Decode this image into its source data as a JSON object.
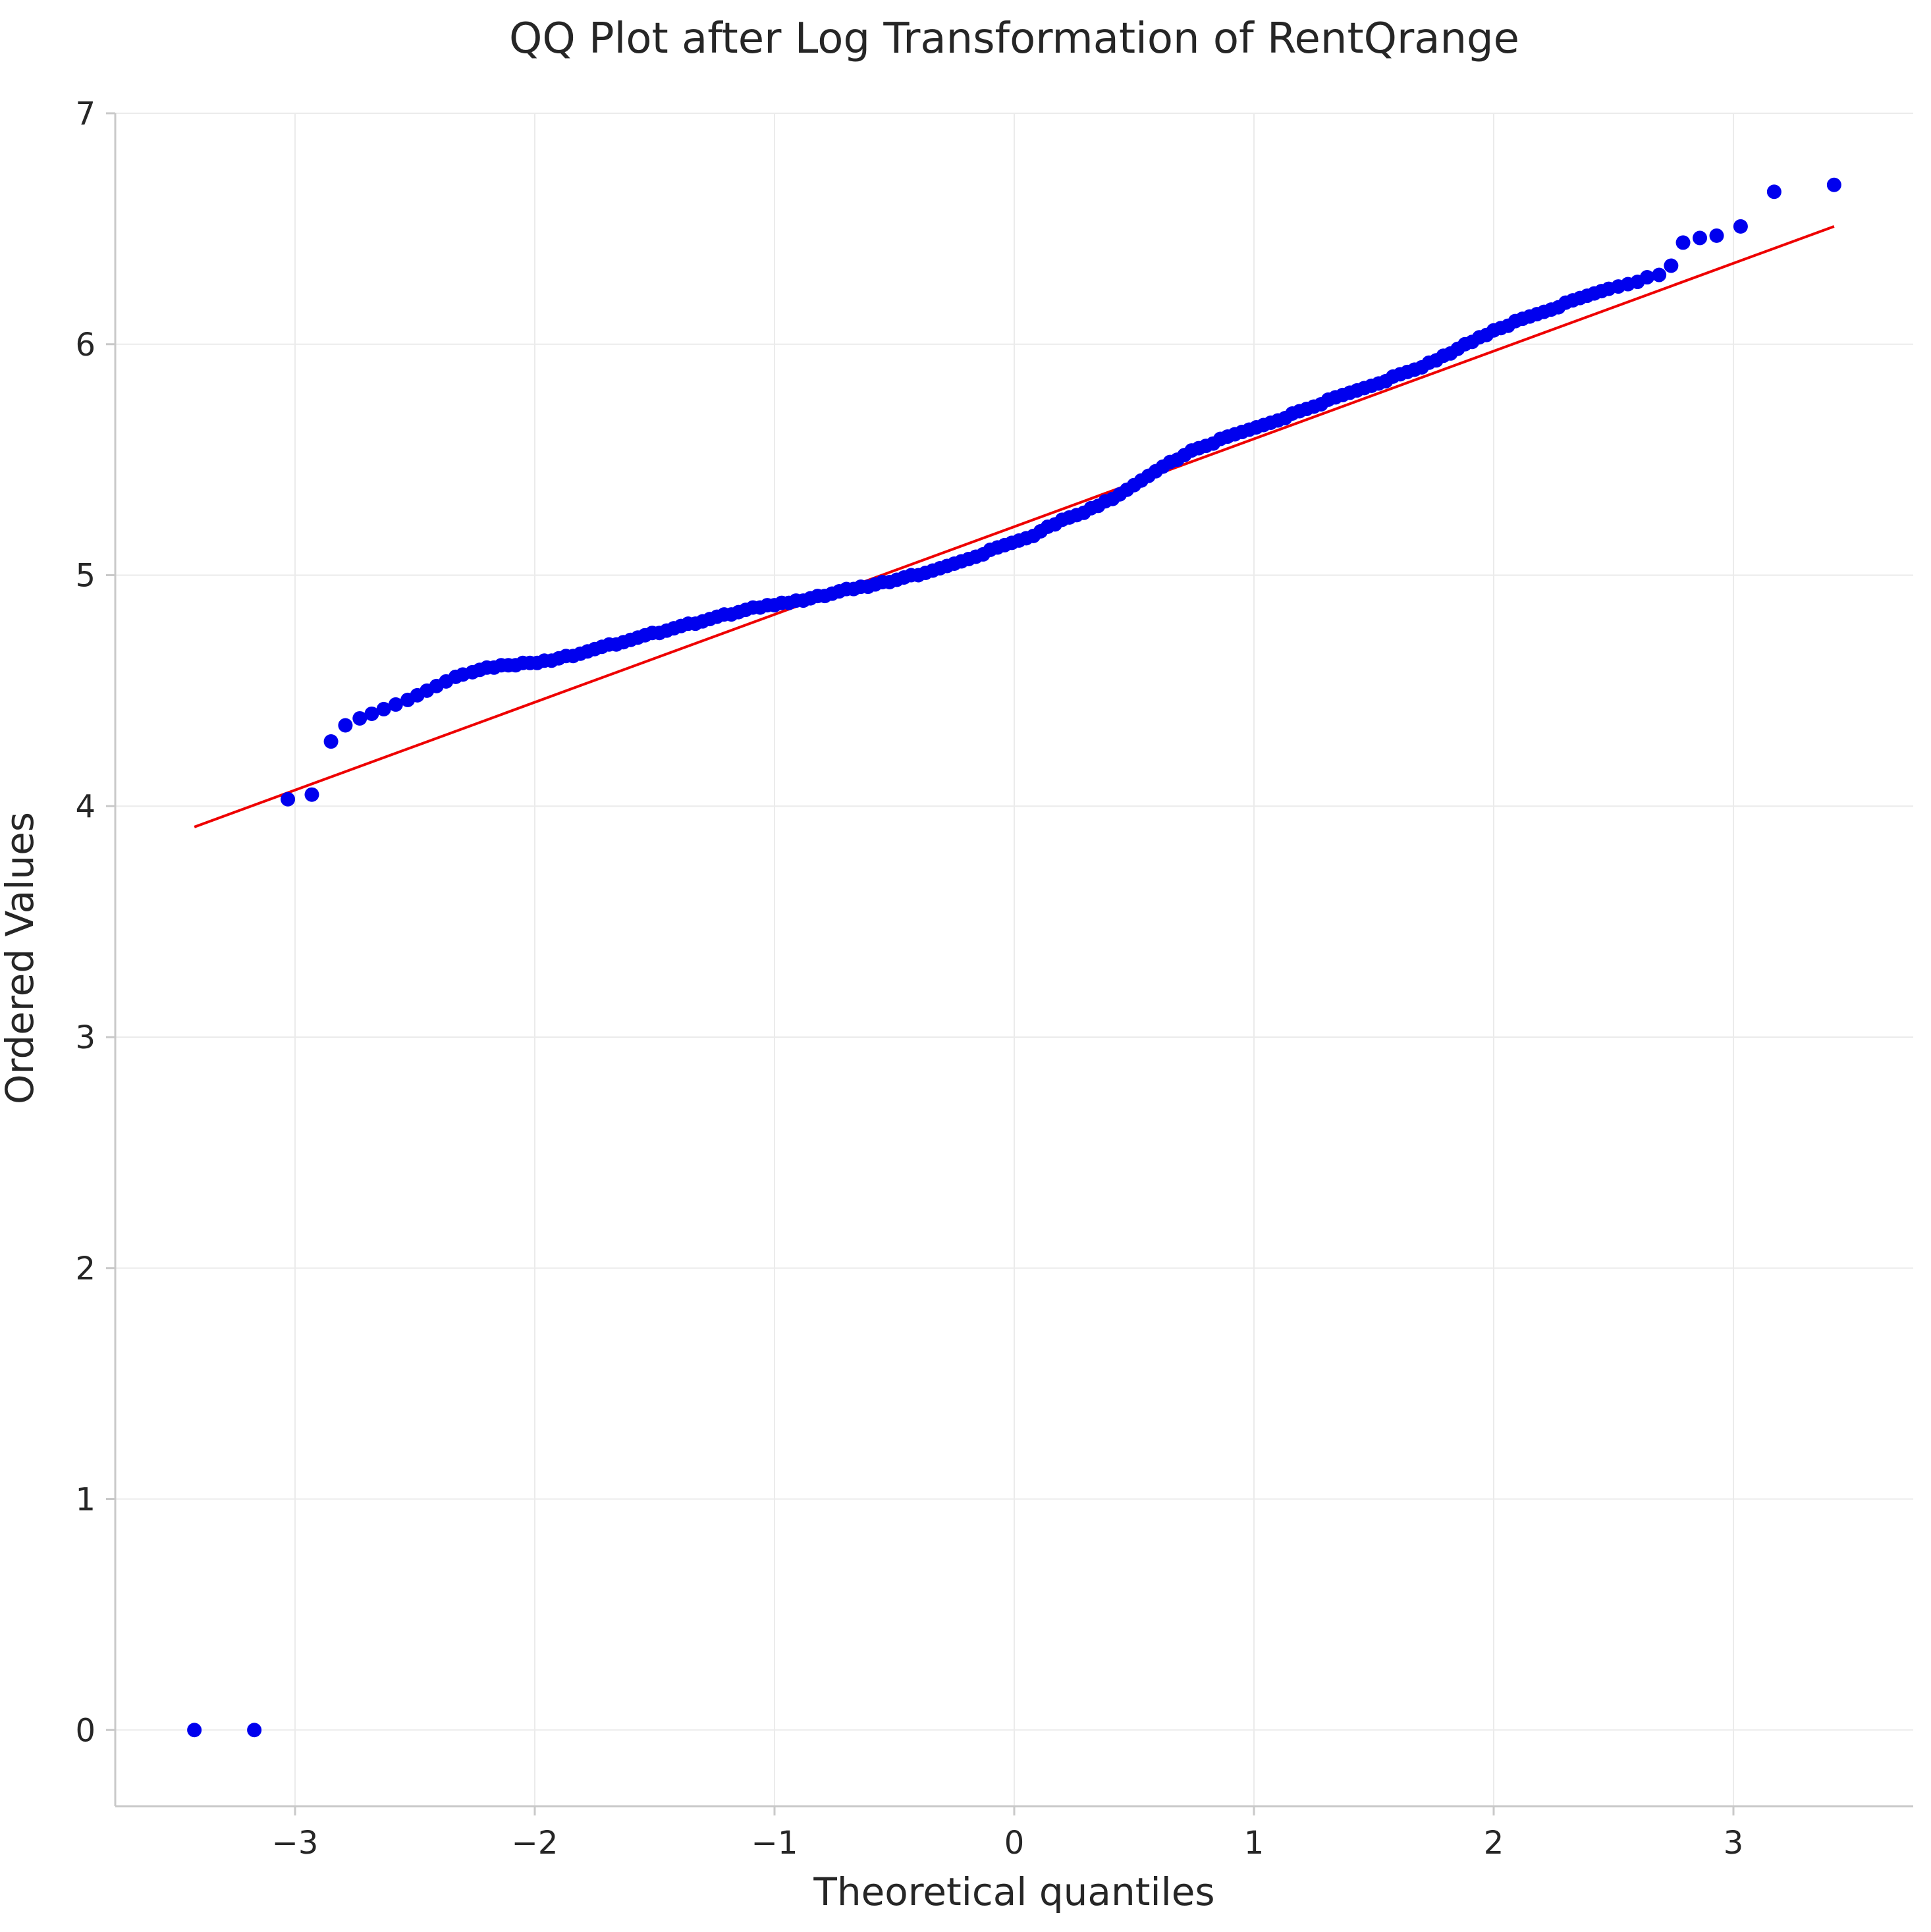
{
  "chart_data": {
    "type": "scatter",
    "title": "QQ Plot after Log Transformation of RentQrange",
    "xlabel": "Theoretical quantiles",
    "ylabel": "Ordered Values",
    "xlim": [
      -3.75,
      3.75
    ],
    "ylim": [
      -0.33,
      7.0
    ],
    "xticks": [
      -3,
      -2,
      -1,
      0,
      1,
      2,
      3
    ],
    "xtick_labels": [
      "−3",
      "−2",
      "−1",
      "0",
      "1",
      "2",
      "3"
    ],
    "yticks": [
      0,
      1,
      2,
      3,
      4,
      5,
      6,
      7
    ],
    "ytick_labels": [
      "0",
      "1",
      "2",
      "3",
      "4",
      "5",
      "6",
      "7"
    ],
    "grid": true,
    "series": [
      {
        "kind": "points",
        "color": "#0000ee",
        "points": [
          [
            -3.42,
            0.0
          ],
          [
            -3.17,
            0.0
          ],
          [
            -3.03,
            4.03
          ],
          [
            -2.93,
            4.05
          ],
          [
            -2.85,
            4.28
          ],
          [
            -2.79,
            4.35
          ],
          [
            -2.73,
            4.38
          ],
          [
            -2.68,
            4.4
          ],
          [
            -2.63,
            4.42
          ],
          [
            -2.58,
            4.44
          ],
          [
            -2.53,
            4.46
          ],
          [
            -2.49,
            4.48
          ],
          [
            -2.45,
            4.5
          ],
          [
            -2.41,
            4.52
          ],
          [
            -2.37,
            4.54
          ],
          [
            -2.33,
            4.56
          ],
          [
            -2.3,
            4.57
          ],
          [
            -2.26,
            4.58
          ],
          [
            -2.23,
            4.59
          ],
          [
            -2.2,
            4.6
          ],
          [
            -2.17,
            4.6
          ],
          [
            -2.14,
            4.61
          ],
          [
            -2.11,
            4.61
          ],
          [
            -2.08,
            4.61
          ],
          [
            -2.05,
            4.62
          ],
          [
            -2.02,
            4.62
          ],
          [
            -1.99,
            4.62
          ],
          [
            -1.96,
            4.63
          ],
          [
            -1.93,
            4.63
          ],
          [
            -1.9,
            4.64
          ],
          [
            -1.87,
            4.65
          ],
          [
            -1.84,
            4.65
          ],
          [
            -1.81,
            4.66
          ],
          [
            -1.78,
            4.67
          ],
          [
            -1.75,
            4.68
          ],
          [
            -1.72,
            4.69
          ],
          [
            -1.69,
            4.7
          ],
          [
            -1.66,
            4.7
          ],
          [
            -1.63,
            4.71
          ],
          [
            -1.6,
            4.72
          ],
          [
            -1.57,
            4.73
          ],
          [
            -1.54,
            4.74
          ],
          [
            -1.51,
            4.75
          ],
          [
            -1.48,
            4.75
          ],
          [
            -1.45,
            4.76
          ],
          [
            -1.42,
            4.77
          ],
          [
            -1.39,
            4.78
          ],
          [
            -1.36,
            4.79
          ],
          [
            -1.33,
            4.79
          ],
          [
            -1.3,
            4.8
          ],
          [
            -1.27,
            4.81
          ],
          [
            -1.24,
            4.82
          ],
          [
            -1.21,
            4.83
          ],
          [
            -1.18,
            4.83
          ],
          [
            -1.15,
            4.84
          ],
          [
            -1.12,
            4.85
          ],
          [
            -1.09,
            4.86
          ],
          [
            -1.06,
            4.86
          ],
          [
            -1.03,
            4.87
          ],
          [
            -1.0,
            4.87
          ],
          [
            -0.97,
            4.88
          ],
          [
            -0.94,
            4.88
          ],
          [
            -0.91,
            4.89
          ],
          [
            -0.88,
            4.89
          ],
          [
            -0.85,
            4.9
          ],
          [
            -0.82,
            4.91
          ],
          [
            -0.79,
            4.91
          ],
          [
            -0.76,
            4.92
          ],
          [
            -0.73,
            4.93
          ],
          [
            -0.7,
            4.94
          ],
          [
            -0.67,
            4.94
          ],
          [
            -0.64,
            4.95
          ],
          [
            -0.61,
            4.95
          ],
          [
            -0.58,
            4.96
          ],
          [
            -0.55,
            4.97
          ],
          [
            -0.52,
            4.97
          ],
          [
            -0.49,
            4.98
          ],
          [
            -0.46,
            4.99
          ],
          [
            -0.43,
            5.0
          ],
          [
            -0.4,
            5.0
          ],
          [
            -0.37,
            5.01
          ],
          [
            -0.34,
            5.02
          ],
          [
            -0.31,
            5.03
          ],
          [
            -0.28,
            5.04
          ],
          [
            -0.25,
            5.05
          ],
          [
            -0.22,
            5.06
          ],
          [
            -0.19,
            5.07
          ],
          [
            -0.16,
            5.08
          ],
          [
            -0.13,
            5.09
          ],
          [
            -0.1,
            5.11
          ],
          [
            -0.07,
            5.12
          ],
          [
            -0.04,
            5.13
          ],
          [
            -0.01,
            5.14
          ],
          [
            0.02,
            5.15
          ],
          [
            0.05,
            5.16
          ],
          [
            0.08,
            5.17
          ],
          [
            0.11,
            5.19
          ],
          [
            0.14,
            5.21
          ],
          [
            0.17,
            5.22
          ],
          [
            0.2,
            5.24
          ],
          [
            0.23,
            5.25
          ],
          [
            0.26,
            5.26
          ],
          [
            0.29,
            5.27
          ],
          [
            0.32,
            5.29
          ],
          [
            0.35,
            5.3
          ],
          [
            0.38,
            5.32
          ],
          [
            0.41,
            5.33
          ],
          [
            0.44,
            5.35
          ],
          [
            0.47,
            5.37
          ],
          [
            0.5,
            5.39
          ],
          [
            0.53,
            5.41
          ],
          [
            0.56,
            5.43
          ],
          [
            0.59,
            5.45
          ],
          [
            0.62,
            5.47
          ],
          [
            0.65,
            5.49
          ],
          [
            0.68,
            5.5
          ],
          [
            0.71,
            5.52
          ],
          [
            0.74,
            5.54
          ],
          [
            0.77,
            5.55
          ],
          [
            0.8,
            5.56
          ],
          [
            0.83,
            5.57
          ],
          [
            0.86,
            5.59
          ],
          [
            0.89,
            5.6
          ],
          [
            0.92,
            5.61
          ],
          [
            0.95,
            5.62
          ],
          [
            0.98,
            5.63
          ],
          [
            1.01,
            5.64
          ],
          [
            1.04,
            5.65
          ],
          [
            1.07,
            5.66
          ],
          [
            1.1,
            5.67
          ],
          [
            1.13,
            5.68
          ],
          [
            1.16,
            5.7
          ],
          [
            1.19,
            5.71
          ],
          [
            1.22,
            5.72
          ],
          [
            1.25,
            5.73
          ],
          [
            1.28,
            5.74
          ],
          [
            1.31,
            5.76
          ],
          [
            1.34,
            5.77
          ],
          [
            1.37,
            5.78
          ],
          [
            1.4,
            5.79
          ],
          [
            1.43,
            5.8
          ],
          [
            1.46,
            5.81
          ],
          [
            1.49,
            5.82
          ],
          [
            1.52,
            5.83
          ],
          [
            1.55,
            5.84
          ],
          [
            1.58,
            5.86
          ],
          [
            1.61,
            5.87
          ],
          [
            1.64,
            5.88
          ],
          [
            1.67,
            5.89
          ],
          [
            1.7,
            5.9
          ],
          [
            1.73,
            5.92
          ],
          [
            1.76,
            5.93
          ],
          [
            1.79,
            5.95
          ],
          [
            1.82,
            5.96
          ],
          [
            1.85,
            5.98
          ],
          [
            1.88,
            6.0
          ],
          [
            1.91,
            6.01
          ],
          [
            1.94,
            6.03
          ],
          [
            1.97,
            6.04
          ],
          [
            2.0,
            6.06
          ],
          [
            2.03,
            6.07
          ],
          [
            2.06,
            6.08
          ],
          [
            2.09,
            6.1
          ],
          [
            2.12,
            6.11
          ],
          [
            2.15,
            6.12
          ],
          [
            2.18,
            6.13
          ],
          [
            2.21,
            6.14
          ],
          [
            2.24,
            6.15
          ],
          [
            2.27,
            6.16
          ],
          [
            2.3,
            6.18
          ],
          [
            2.33,
            6.19
          ],
          [
            2.36,
            6.2
          ],
          [
            2.39,
            6.21
          ],
          [
            2.42,
            6.22
          ],
          [
            2.45,
            6.23
          ],
          [
            2.48,
            6.24
          ],
          [
            2.52,
            6.25
          ],
          [
            2.56,
            6.26
          ],
          [
            2.6,
            6.27
          ],
          [
            2.64,
            6.29
          ],
          [
            2.69,
            6.3
          ],
          [
            2.74,
            6.34
          ],
          [
            2.79,
            6.44
          ],
          [
            2.86,
            6.46
          ],
          [
            2.93,
            6.47
          ],
          [
            3.03,
            6.51
          ],
          [
            3.17,
            6.66
          ],
          [
            3.42,
            6.69
          ]
        ]
      },
      {
        "kind": "line",
        "color": "#ee0000",
        "points": [
          [
            -3.42,
            3.91
          ],
          [
            3.42,
            6.51
          ]
        ]
      }
    ]
  }
}
